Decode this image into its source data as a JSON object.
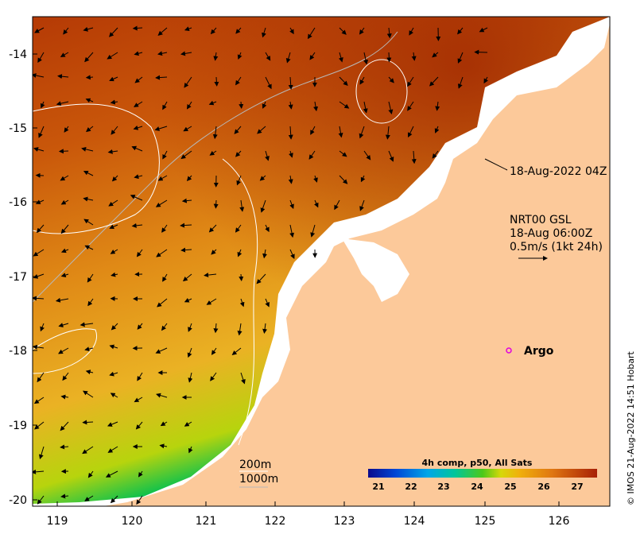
{
  "map": {
    "x_ticks": [
      "119",
      "120",
      "121",
      "122",
      "123",
      "124",
      "125",
      "126"
    ],
    "y_ticks": [
      "-14",
      "-15",
      "-16",
      "-17",
      "-18",
      "-19",
      "-20"
    ],
    "annotations": {
      "pass_time": "18-Aug-2022 04Z",
      "current_source": "NRT00 GSL",
      "current_time": "18-Aug 06:00Z",
      "current_scale": "0.5m/s (1kt 24h)",
      "argo_label": "Argo",
      "contour_200": "200m",
      "contour_1000": "1000m"
    },
    "colorbar": {
      "title": "4h comp, p50, All Sats",
      "labels": [
        "21",
        "22",
        "23",
        "24",
        "25",
        "26",
        "27"
      ]
    },
    "copyright": "© IMOS 21-Aug-2022 14:51 Hobart",
    "colors": {
      "land": "#fcc99a",
      "no_data": "#ffffff",
      "argo_marker": "#e000e0",
      "contour_200": "#ffffff",
      "contour_1000": "#b8b8b8"
    }
  }
}
